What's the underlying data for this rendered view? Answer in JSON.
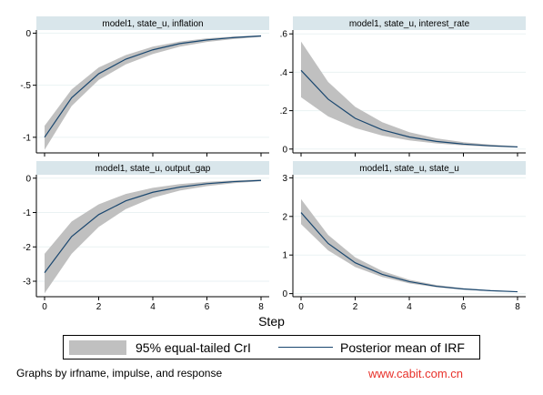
{
  "chart_data": [
    {
      "type": "area",
      "title": "model1, state_u, inflation",
      "x": [
        0,
        1,
        2,
        3,
        4,
        5,
        6,
        7,
        8
      ],
      "series": [
        {
          "name": "Posterior mean of IRF",
          "values": [
            -1.0,
            -0.62,
            -0.39,
            -0.25,
            -0.16,
            -0.1,
            -0.065,
            -0.042,
            -0.027
          ]
        },
        {
          "name": "95% equal-tailed CrI",
          "lower": [
            -1.12,
            -0.7,
            -0.45,
            -0.3,
            -0.2,
            -0.13,
            -0.085,
            -0.056,
            -0.036
          ],
          "upper": [
            -0.89,
            -0.54,
            -0.33,
            -0.21,
            -0.13,
            -0.08,
            -0.05,
            -0.032,
            -0.02
          ]
        }
      ],
      "xlim": [
        0,
        8
      ],
      "ylim": [
        -1.15,
        0.03
      ],
      "x_ticks": [
        "0",
        "2",
        "4",
        "6",
        "8"
      ],
      "show_x_ticks": false,
      "y_ticks": [
        {
          "v": 0,
          "label": "0"
        },
        {
          "v": -0.5,
          "label": "-.5"
        },
        {
          "v": -1,
          "label": "-1"
        }
      ],
      "grid": true
    },
    {
      "type": "area",
      "title": "model1, state_u, interest_rate",
      "x": [
        0,
        1,
        2,
        3,
        4,
        5,
        6,
        7,
        8
      ],
      "series": [
        {
          "name": "Posterior mean of IRF",
          "values": [
            0.41,
            0.26,
            0.16,
            0.1,
            0.063,
            0.04,
            0.026,
            0.017,
            0.011
          ]
        },
        {
          "name": "95% equal-tailed CrI",
          "lower": [
            0.27,
            0.17,
            0.11,
            0.07,
            0.045,
            0.029,
            0.019,
            0.012,
            0.008
          ],
          "upper": [
            0.56,
            0.35,
            0.22,
            0.14,
            0.088,
            0.056,
            0.036,
            0.023,
            0.015
          ]
        }
      ],
      "xlim": [
        0,
        8
      ],
      "ylim": [
        -0.02,
        0.62
      ],
      "x_ticks": [
        "0",
        "2",
        "4",
        "6",
        "8"
      ],
      "show_x_ticks": false,
      "y_ticks": [
        {
          "v": 0,
          "label": "0"
        },
        {
          "v": 0.2,
          "label": ".2"
        },
        {
          "v": 0.4,
          "label": ".4"
        },
        {
          "v": 0.6,
          "label": ".6"
        }
      ],
      "grid": true
    },
    {
      "type": "area",
      "title": "model1, state_u, output_gap",
      "x": [
        0,
        1,
        2,
        3,
        4,
        5,
        6,
        7,
        8
      ],
      "series": [
        {
          "name": "Posterior mean of IRF",
          "values": [
            -2.75,
            -1.7,
            -1.06,
            -0.66,
            -0.41,
            -0.26,
            -0.16,
            -0.1,
            -0.065
          ]
        },
        {
          "name": "95% equal-tailed CrI",
          "lower": [
            -3.35,
            -2.2,
            -1.42,
            -0.9,
            -0.57,
            -0.36,
            -0.23,
            -0.145,
            -0.09
          ],
          "upper": [
            -2.2,
            -1.26,
            -0.76,
            -0.46,
            -0.28,
            -0.17,
            -0.105,
            -0.065,
            -0.04
          ]
        }
      ],
      "xlim": [
        0,
        8
      ],
      "ylim": [
        -3.45,
        0.1
      ],
      "x_ticks": [
        "0",
        "2",
        "4",
        "6",
        "8"
      ],
      "show_x_ticks": true,
      "y_ticks": [
        {
          "v": 0,
          "label": "0"
        },
        {
          "v": -1,
          "label": "-1"
        },
        {
          "v": -2,
          "label": "-2"
        },
        {
          "v": -3,
          "label": "-3"
        }
      ],
      "grid": true
    },
    {
      "type": "area",
      "title": "model1, state_u, state_u",
      "x": [
        0,
        1,
        2,
        3,
        4,
        5,
        6,
        7,
        8
      ],
      "series": [
        {
          "name": "Posterior mean of IRF",
          "values": [
            2.1,
            1.3,
            0.8,
            0.5,
            0.31,
            0.19,
            0.12,
            0.076,
            0.048
          ]
        },
        {
          "name": "95% equal-tailed CrI",
          "lower": [
            1.8,
            1.12,
            0.69,
            0.43,
            0.265,
            0.165,
            0.103,
            0.065,
            0.04
          ],
          "upper": [
            2.45,
            1.52,
            0.94,
            0.585,
            0.36,
            0.225,
            0.14,
            0.088,
            0.056
          ]
        }
      ],
      "xlim": [
        0,
        8
      ],
      "ylim": [
        -0.08,
        3.08
      ],
      "x_ticks": [
        "0",
        "2",
        "4",
        "6",
        "8"
      ],
      "show_x_ticks": true,
      "y_ticks": [
        {
          "v": 0,
          "label": "0"
        },
        {
          "v": 1,
          "label": "1"
        },
        {
          "v": 2,
          "label": "2"
        },
        {
          "v": 3,
          "label": "3"
        }
      ],
      "grid": true
    }
  ],
  "xlabel": "Step",
  "legend": {
    "band_label": "95% equal-tailed CrI",
    "line_label": "Posterior mean of IRF",
    "band_color": "#c0c0c0",
    "line_color": "#1a476f"
  },
  "note": "Graphs by irfname, impulse, and response",
  "watermark": "www.cabit.com.cn",
  "colors": {
    "header_bg": "#d9e6eb",
    "grid": "#eaf2f3"
  }
}
